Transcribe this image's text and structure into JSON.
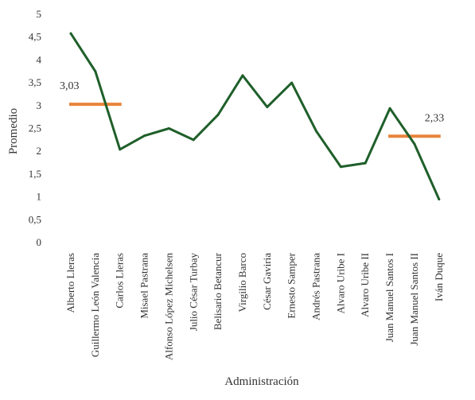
{
  "chart_data": {
    "type": "line",
    "title": "",
    "xlabel": "Administración",
    "ylabel": "Promedio",
    "ylim": [
      0,
      5
    ],
    "y_ticks": [
      "0",
      "0,5",
      "1",
      "1,5",
      "2",
      "2,5",
      "3",
      "3,5",
      "4",
      "4,5",
      "5"
    ],
    "y_tick_values": [
      0,
      0.5,
      1,
      1.5,
      2,
      2.5,
      3,
      3.5,
      4,
      4.5,
      5
    ],
    "grid": false,
    "legend": "none",
    "categories": [
      "Alberto Lleras",
      "Guillermo León Valencia",
      "Carlos Lleras",
      "Misael Pastrana",
      "Alfonso López Michelsen",
      "Julio César Turbay",
      "Belisario Betancur",
      "Virgilio Barco",
      "César Gaviria",
      "Ernesto Samper",
      "Andrés Pastrana",
      "Alvaro Uribe I",
      "Alvaro Uribe II",
      "Juan Manuel Santos I",
      "Juan Manuel Santos II",
      "Iván Duque"
    ],
    "series": [
      {
        "color": "#1f5f2a",
        "values": [
          4.58,
          3.75,
          2.04,
          2.34,
          2.5,
          2.25,
          2.8,
          3.66,
          2.97,
          3.5,
          2.44,
          1.66,
          1.74,
          2.94,
          2.16,
          0.95
        ]
      }
    ],
    "annotations": [
      {
        "label": "3,03",
        "value": 3.03,
        "from_index": 0,
        "to_index": 2,
        "color": "#e8833a"
      },
      {
        "label": "2,33",
        "value": 2.33,
        "from_index": 13,
        "to_index": 15,
        "color": "#e8833a"
      }
    ]
  }
}
